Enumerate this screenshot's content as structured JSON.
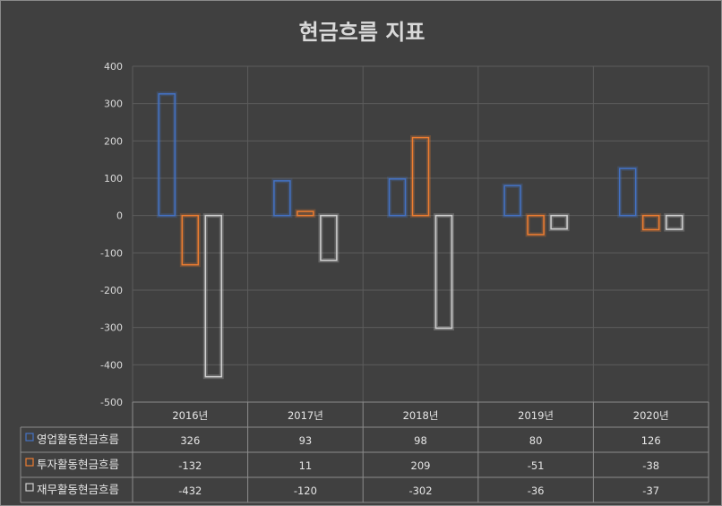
{
  "chart_data": {
    "type": "bar",
    "title": "현금흐름 지표",
    "categories": [
      "2016년",
      "2017년",
      "2018년",
      "2019년",
      "2020년"
    ],
    "series": [
      {
        "name": "영업활동현금흐름",
        "values": [
          326,
          93,
          98,
          80,
          126
        ],
        "color": "#4472c4"
      },
      {
        "name": "투자활동현금흐름",
        "values": [
          -132,
          11,
          209,
          -51,
          -38
        ],
        "color": "#ed7d31"
      },
      {
        "name": "재무활동현금흐름",
        "values": [
          -432,
          -120,
          -302,
          -36,
          -37
        ],
        "color": "#d0d0d0"
      }
    ],
    "ylim": [
      -500,
      400
    ],
    "yticks": [
      400,
      300,
      200,
      100,
      0,
      -100,
      -200,
      -300,
      -400,
      -500
    ],
    "grid": true,
    "legend": "data table"
  }
}
